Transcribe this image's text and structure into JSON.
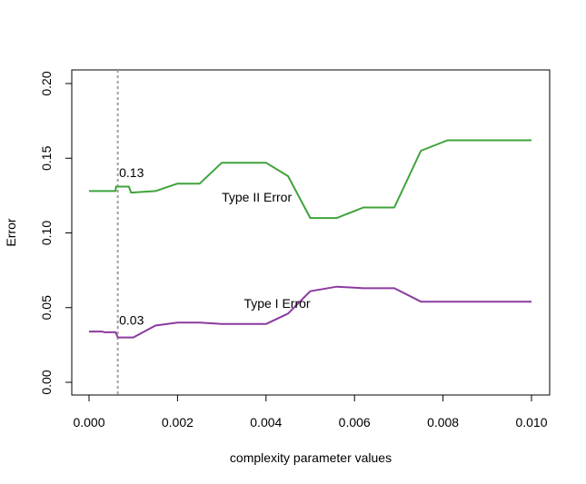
{
  "chart_data": {
    "type": "line",
    "title": "",
    "xlabel": "complexity parameter values",
    "ylabel": "Error",
    "xlim": [
      0.0,
      0.01
    ],
    "ylim": [
      0.0,
      0.2
    ],
    "x_ticks": [
      0.0,
      0.002,
      0.004,
      0.006,
      0.008,
      0.01
    ],
    "x_tick_labels": [
      "0.000",
      "0.002",
      "0.004",
      "0.006",
      "0.008",
      "0.010"
    ],
    "y_ticks": [
      0.0,
      0.05,
      0.1,
      0.15,
      0.2
    ],
    "y_tick_labels": [
      "0.00",
      "0.05",
      "0.10",
      "0.15",
      "0.20"
    ],
    "grid": false,
    "legend": "none",
    "series": [
      {
        "name": "Type II Error",
        "color": "#3fa33a",
        "x": [
          0.0,
          0.0006,
          0.00061,
          0.0009,
          0.00095,
          0.0015,
          0.002,
          0.0025,
          0.003,
          0.004,
          0.0045,
          0.005,
          0.0056,
          0.0062,
          0.0069,
          0.0075,
          0.0081,
          0.01
        ],
        "y": [
          0.128,
          0.128,
          0.131,
          0.131,
          0.127,
          0.128,
          0.133,
          0.133,
          0.147,
          0.147,
          0.138,
          0.11,
          0.11,
          0.117,
          0.117,
          0.155,
          0.162,
          0.162
        ]
      },
      {
        "name": "Type I Error",
        "color": "#8b3a9e",
        "x": [
          0.0,
          0.0003,
          0.00035,
          0.0006,
          0.00065,
          0.001,
          0.0015,
          0.002,
          0.0025,
          0.003,
          0.004,
          0.0045,
          0.005,
          0.0056,
          0.0062,
          0.0069,
          0.0075,
          0.01
        ],
        "y": [
          0.034,
          0.034,
          0.0335,
          0.0335,
          0.03,
          0.03,
          0.038,
          0.04,
          0.04,
          0.039,
          0.039,
          0.046,
          0.061,
          0.064,
          0.063,
          0.063,
          0.054,
          0.054
        ]
      }
    ],
    "reference_line": {
      "x": 0.00065,
      "style": "dotted",
      "color": "#a0a0a0"
    },
    "annotations": [
      {
        "text": "0.13",
        "x": 0.00068,
        "y": 0.1375
      },
      {
        "text": "0.03",
        "x": 0.00068,
        "y": 0.0385
      },
      {
        "text": "Type II Error",
        "x": 0.003,
        "y": 0.121
      },
      {
        "text": "Type I Error",
        "x": 0.0035,
        "y": 0.05
      }
    ]
  }
}
